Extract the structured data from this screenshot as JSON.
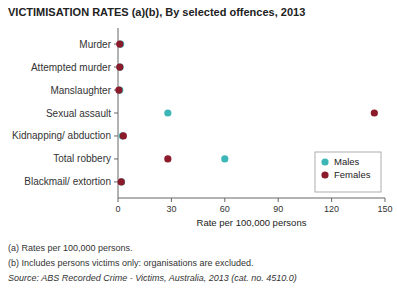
{
  "chart_data": {
    "type": "dot",
    "orientation": "horizontal",
    "title": "VICTIMISATION RATES (a)(b), By selected offences, 2013",
    "xlabel": "Rate per 100,000 persons",
    "categories": [
      "Murder",
      "Attempted murder",
      "Manslaughter",
      "Sexual assault",
      "Kidnapping/ abduction",
      "Total robbery",
      "Blackmail/ extortion"
    ],
    "series": [
      {
        "name": "Males",
        "color": "#3cb6b6",
        "values": [
          1.5,
          1.2,
          1.0,
          28,
          2.5,
          60,
          2.0
        ]
      },
      {
        "name": "Females",
        "color": "#8b1a2a",
        "values": [
          1.0,
          1.0,
          0.5,
          144,
          3.0,
          28,
          1.8
        ]
      }
    ],
    "xlim": [
      0,
      150
    ],
    "xticks": [
      0,
      30,
      60,
      90,
      120,
      150
    ],
    "grid": false,
    "legend": "lower right",
    "annotations": [
      "(a) Rates per 100,000 persons.",
      "(b) Includes persons victims only: organisations are excluded.",
      "Source: ABS Recorded Crime - Victims, Australia, 2013 (cat. no. 4510.0)"
    ]
  }
}
